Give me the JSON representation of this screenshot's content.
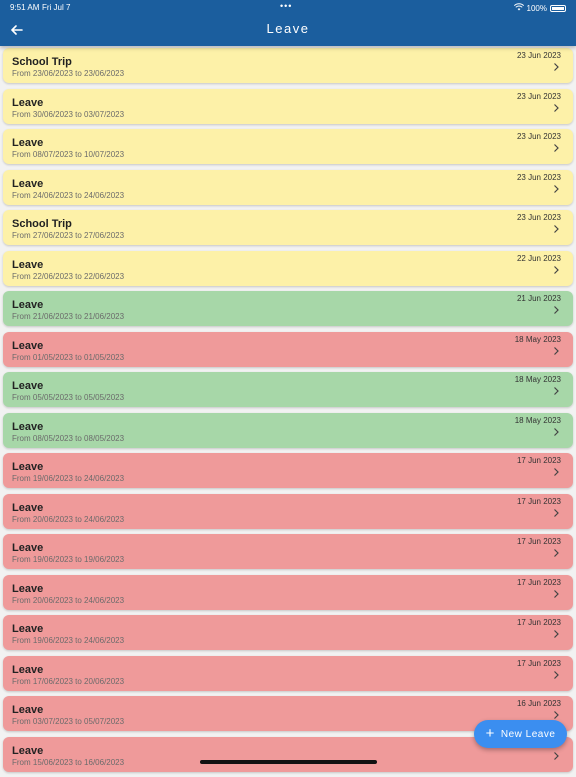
{
  "status_bar": {
    "time": "9:51 AM",
    "date": "Fri Jul 7",
    "dots": "•••",
    "battery": "100%"
  },
  "header": {
    "title": "Leave"
  },
  "leaves": [
    {
      "title": "School Trip",
      "range": "From 23/06/2023 to 23/06/2023",
      "date": "23 Jun 2023",
      "status": "yellow"
    },
    {
      "title": "Leave",
      "range": "From 30/06/2023 to 03/07/2023",
      "date": "23 Jun 2023",
      "status": "yellow"
    },
    {
      "title": "Leave",
      "range": "From 08/07/2023 to 10/07/2023",
      "date": "23 Jun 2023",
      "status": "yellow"
    },
    {
      "title": "Leave",
      "range": "From 24/06/2023 to 24/06/2023",
      "date": "23 Jun 2023",
      "status": "yellow"
    },
    {
      "title": "School Trip",
      "range": "From 27/06/2023 to 27/06/2023",
      "date": "23 Jun 2023",
      "status": "yellow"
    },
    {
      "title": "Leave",
      "range": "From 22/06/2023 to 22/06/2023",
      "date": "22 Jun 2023",
      "status": "yellow"
    },
    {
      "title": "Leave",
      "range": "From 21/06/2023 to 21/06/2023",
      "date": "21 Jun 2023",
      "status": "green"
    },
    {
      "title": "Leave",
      "range": "From 01/05/2023 to 01/05/2023",
      "date": "18 May 2023",
      "status": "red"
    },
    {
      "title": "Leave",
      "range": "From 05/05/2023 to 05/05/2023",
      "date": "18 May 2023",
      "status": "green"
    },
    {
      "title": "Leave",
      "range": "From 08/05/2023 to 08/05/2023",
      "date": "18 May 2023",
      "status": "green"
    },
    {
      "title": "Leave",
      "range": "From 19/06/2023 to 24/06/2023",
      "date": "17 Jun 2023",
      "status": "red"
    },
    {
      "title": "Leave",
      "range": "From 20/06/2023 to 24/06/2023",
      "date": "17 Jun 2023",
      "status": "red"
    },
    {
      "title": "Leave",
      "range": "From 19/06/2023 to 19/06/2023",
      "date": "17 Jun 2023",
      "status": "red"
    },
    {
      "title": "Leave",
      "range": "From 20/06/2023 to 24/06/2023",
      "date": "17 Jun 2023",
      "status": "red"
    },
    {
      "title": "Leave",
      "range": "From 19/06/2023 to 24/06/2023",
      "date": "17 Jun 2023",
      "status": "red"
    },
    {
      "title": "Leave",
      "range": "From 17/06/2023 to 20/06/2023",
      "date": "17 Jun 2023",
      "status": "red"
    },
    {
      "title": "Leave",
      "range": "From 03/07/2023 to 05/07/2023",
      "date": "16 Jun 2023",
      "status": "red"
    },
    {
      "title": "Leave",
      "range": "From 15/06/2023 to 16/06/2023",
      "date": "",
      "status": "red"
    }
  ],
  "fab": {
    "label": "New Leave",
    "icon": "plus-icon"
  },
  "colors": {
    "header": "#1b5e9e",
    "pending": "#fdf1a8",
    "approved": "#a7d7a8",
    "rejected": "#ef9a9a",
    "fab": "#3b8ef0"
  }
}
